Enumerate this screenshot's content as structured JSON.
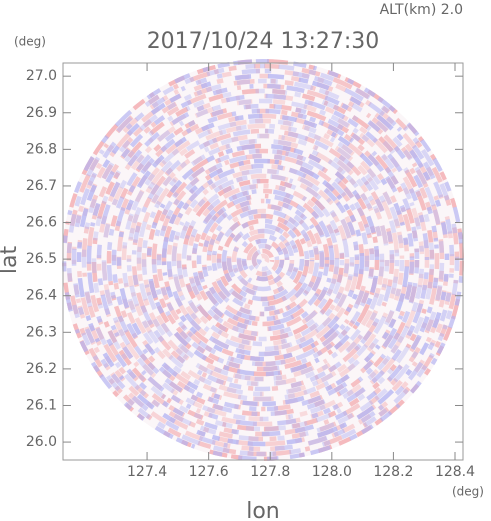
{
  "chart_data": {
    "type": "radar-ppi",
    "title": "2017/10/24 13:27:30",
    "subtitle": "ALT(km) 2.0",
    "x_label": "lon",
    "y_label": "lat",
    "x_unit": "(deg)",
    "y_unit": "(deg)",
    "xlim": [
      127.127,
      128.426
    ],
    "ylim": [
      25.951,
      27.036
    ],
    "xticks": [
      127.4,
      127.6,
      127.8,
      {
        "value": 128,
        "label": "128.0"
      },
      128.2,
      128.4
    ],
    "yticks": [
      {
        "value": 26,
        "label": "26.0"
      },
      26.1,
      26.2,
      26.3,
      26.4,
      26.5,
      26.6,
      26.7,
      26.8,
      26.9,
      {
        "value": 27,
        "label": "27.0"
      }
    ]
  }
}
